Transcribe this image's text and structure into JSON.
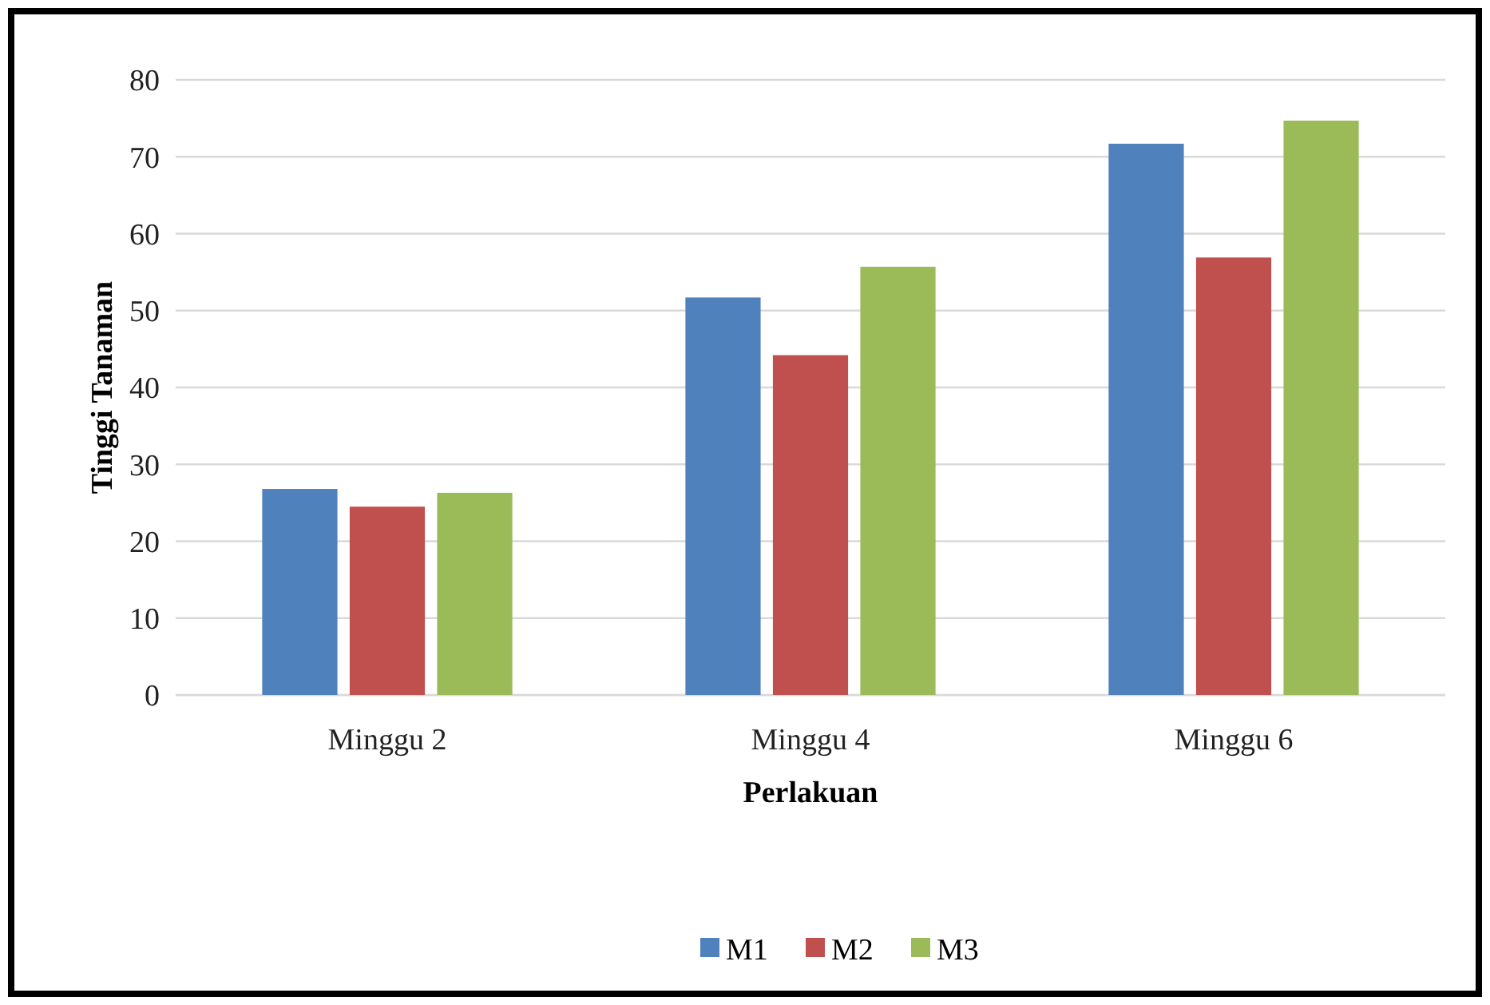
{
  "chart_data": {
    "type": "bar",
    "xlabel": "Perlakuan",
    "ylabel": "Tinggi Tanaman",
    "categories": [
      "Minggu 2",
      "Minggu 4",
      "Minggu 6"
    ],
    "series": [
      {
        "name": "M1",
        "color": "#4f81bd",
        "values": [
          26.8,
          51.7,
          71.7
        ]
      },
      {
        "name": "M2",
        "color": "#c0504d",
        "values": [
          24.5,
          44.2,
          56.9
        ]
      },
      {
        "name": "M3",
        "color": "#9bbb59",
        "values": [
          26.3,
          55.7,
          74.7
        ]
      }
    ],
    "ylim": [
      0,
      80
    ],
    "yticks": [
      0,
      10,
      20,
      30,
      40,
      50,
      60,
      70,
      80
    ],
    "grid": "y",
    "legend": "bottom"
  }
}
